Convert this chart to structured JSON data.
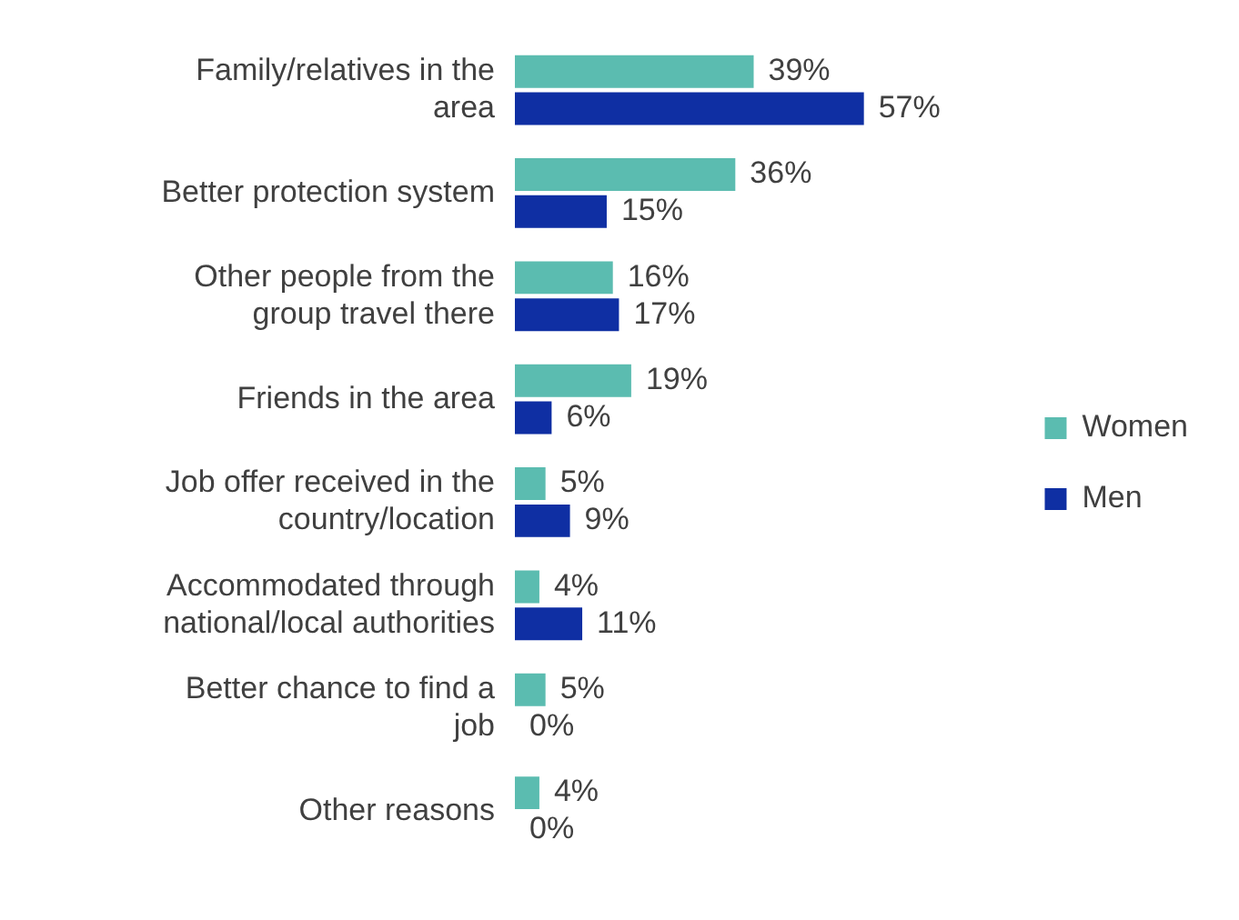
{
  "chart_data": {
    "type": "bar",
    "orientation": "horizontal",
    "legend": "right",
    "categories": [
      "Family/relatives in the area",
      "Better protection system",
      "Other people from the group travel there",
      "Friends in the area",
      "Job offer received in the country/location",
      "Accommodated through national/local authorities",
      "Better chance to find a job",
      "Other reasons"
    ],
    "series": [
      {
        "name": "Women",
        "color": "#5bbcb0",
        "values": [
          39,
          36,
          16,
          19,
          5,
          4,
          5,
          4
        ],
        "value_labels": [
          "39%",
          "36%",
          "16%",
          "19%",
          "5%",
          "4%",
          "5%",
          "4%"
        ]
      },
      {
        "name": "Men",
        "color": "#0f2fa3",
        "values": [
          57,
          15,
          17,
          6,
          9,
          11,
          0,
          0
        ],
        "value_labels": [
          "57%",
          "15%",
          "17%",
          "6%",
          "9%",
          "11%",
          "0%",
          "0%"
        ]
      }
    ]
  }
}
